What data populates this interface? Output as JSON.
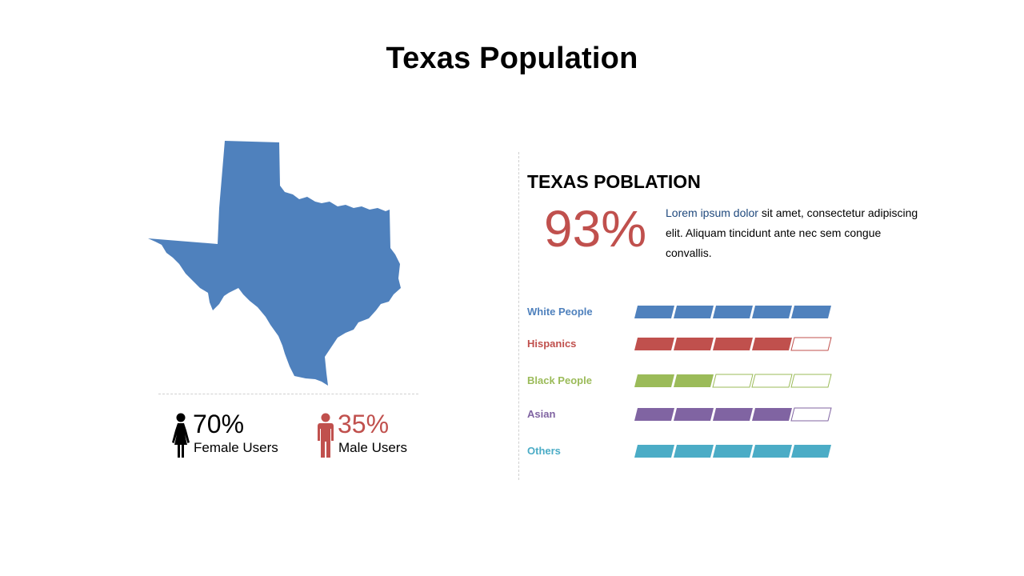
{
  "slide": {
    "title": "Texas Population"
  },
  "gender_stats": [
    {
      "percent": "70%",
      "label": "Female Users",
      "color": "#000000",
      "icon": "female-icon"
    },
    {
      "percent": "35%",
      "label": "Male Users",
      "color": "#c0504d",
      "icon": "male-icon"
    }
  ],
  "info": {
    "heading": "TEXAS POBLATION",
    "big_percent": "93%",
    "desc_highlight": "Lorem ipsum dolor",
    "desc_rest": " sit amet, consectetur adipiscing elit. Aliquam tincidunt ante nec sem congue convallis."
  },
  "colors": {
    "map": "#4f81bd",
    "accent_red": "#c0504d"
  },
  "chart_data": {
    "type": "bar",
    "segments_total": 5,
    "categories": [
      "White People",
      "Hispanics",
      "Black People",
      "Asian",
      "Others"
    ],
    "values": [
      5,
      4,
      2,
      4,
      5
    ],
    "colors": [
      "#4f81bd",
      "#c0504d",
      "#9bbb59",
      "#8064a2",
      "#4bacc6"
    ]
  }
}
